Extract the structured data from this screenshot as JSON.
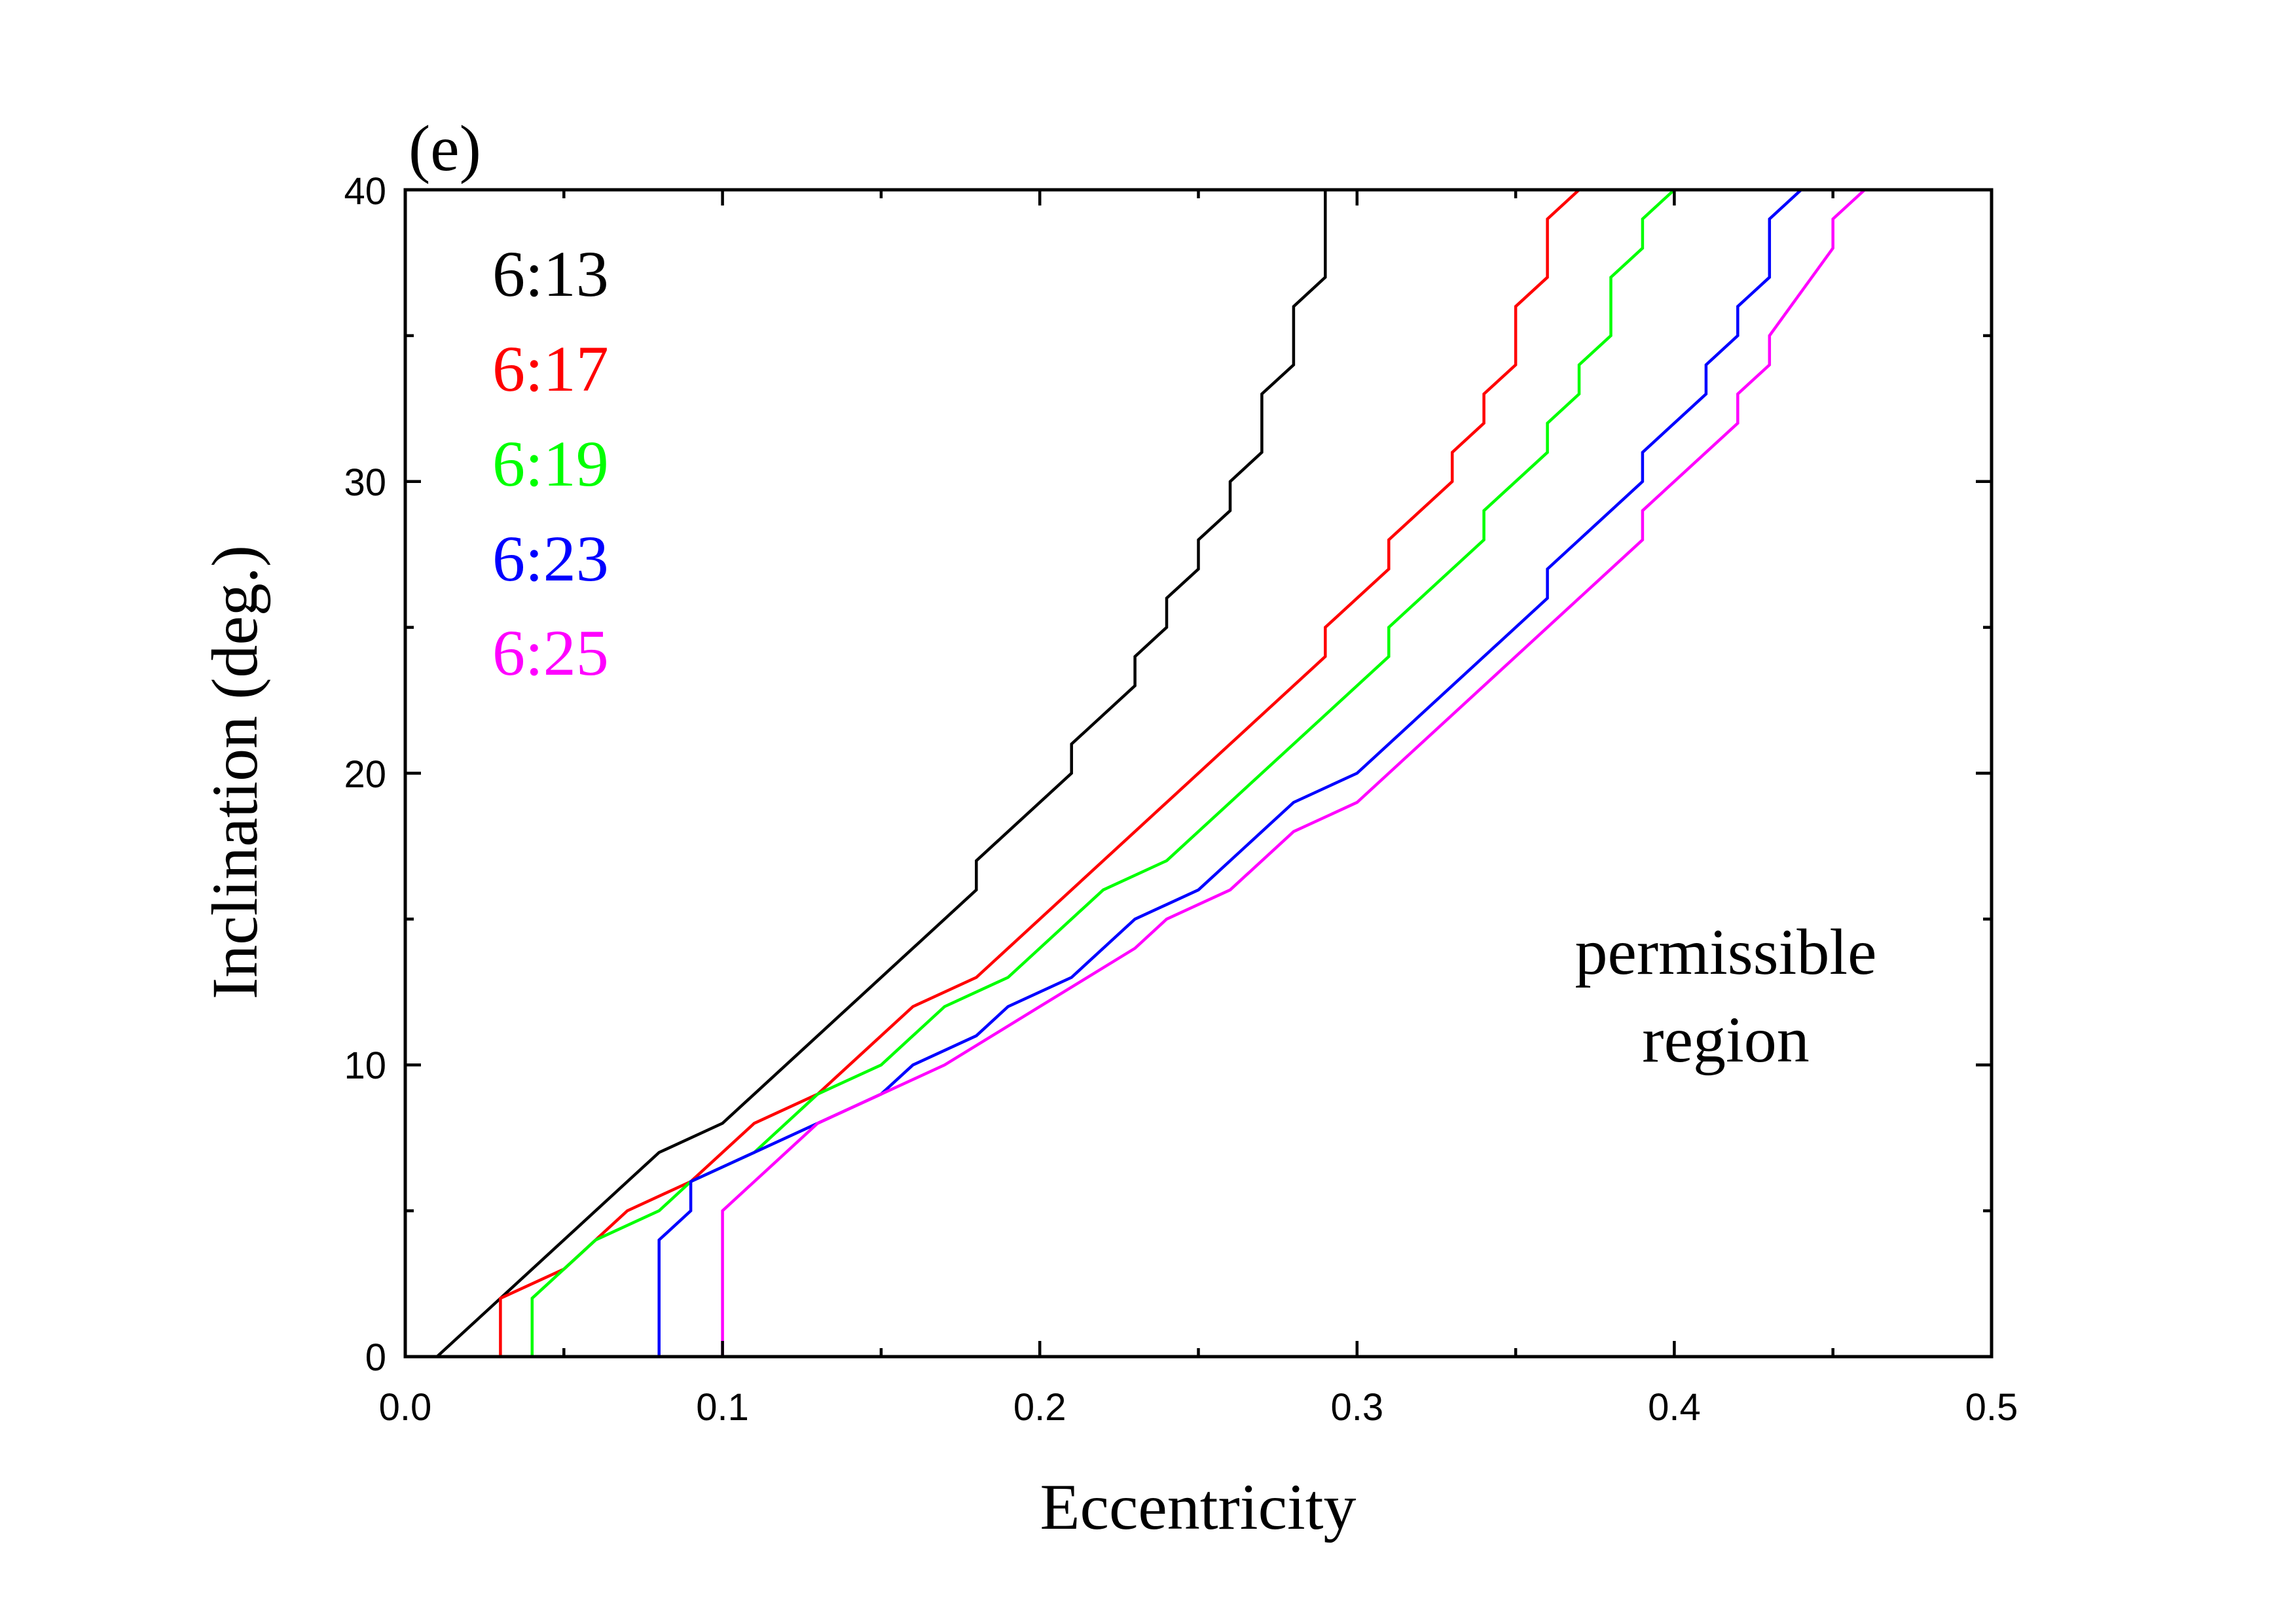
{
  "chart_data": {
    "type": "line",
    "panel_label": "(e)",
    "xlabel": "Eccentricity",
    "ylabel": "Inclination (deg.)",
    "xlim": [
      0.0,
      0.5
    ],
    "ylim": [
      0,
      40
    ],
    "x_ticks": [
      0.0,
      0.1,
      0.2,
      0.3,
      0.4,
      0.5
    ],
    "x_tick_labels": [
      "0.0",
      "0.1",
      "0.2",
      "0.3",
      "0.4",
      "0.5"
    ],
    "y_ticks": [
      0,
      10,
      20,
      30,
      40
    ],
    "y_tick_labels": [
      "0",
      "10",
      "20",
      "30",
      "40"
    ],
    "x_minor_step": 0.05,
    "y_minor_step": 5,
    "grid": false,
    "legend_position": "top-left",
    "annotation": {
      "line1": "permissible",
      "line2": "region"
    },
    "series": [
      {
        "name": "6:13",
        "color": "#000000",
        "x": [
          0.01,
          0.07,
          0.08,
          0.1,
          0.18,
          0.18,
          0.21,
          0.21,
          0.23,
          0.23,
          0.24,
          0.24,
          0.25,
          0.25,
          0.26,
          0.26,
          0.27,
          0.27,
          0.28,
          0.28,
          0.29,
          0.29
        ],
        "y": [
          0,
          6,
          7,
          8,
          16,
          17,
          20,
          21,
          23,
          24,
          25,
          26,
          27,
          28,
          29,
          30,
          31,
          33,
          34,
          36,
          37,
          40
        ]
      },
      {
        "name": "6:17",
        "color": "#ff0000",
        "x": [
          0.03,
          0.03,
          0.05,
          0.07,
          0.09,
          0.11,
          0.13,
          0.16,
          0.18,
          0.29,
          0.29,
          0.31,
          0.31,
          0.33,
          0.33,
          0.34,
          0.34,
          0.35,
          0.35,
          0.36,
          0.36,
          0.37
        ],
        "y": [
          0,
          2,
          3,
          5,
          6,
          8,
          9,
          12,
          13,
          24,
          25,
          27,
          28,
          30,
          31,
          32,
          33,
          34,
          36,
          37,
          39,
          40
        ]
      },
      {
        "name": "6:19",
        "color": "#00ff00",
        "x": [
          0.04,
          0.04,
          0.06,
          0.08,
          0.09,
          0.11,
          0.13,
          0.15,
          0.17,
          0.19,
          0.22,
          0.24,
          0.31,
          0.31,
          0.34,
          0.34,
          0.36,
          0.36,
          0.37,
          0.37,
          0.38,
          0.38,
          0.39,
          0.39,
          0.4
        ],
        "y": [
          0,
          2,
          4,
          5,
          6,
          7,
          9,
          10,
          12,
          13,
          16,
          17,
          24,
          25,
          28,
          29,
          31,
          32,
          33,
          34,
          35,
          37,
          38,
          39,
          40
        ]
      },
      {
        "name": "6:23",
        "color": "#0000ff",
        "x": [
          0.08,
          0.08,
          0.09,
          0.09,
          0.15,
          0.16,
          0.18,
          0.19,
          0.21,
          0.23,
          0.25,
          0.28,
          0.3,
          0.36,
          0.36,
          0.39,
          0.39,
          0.41,
          0.41,
          0.42,
          0.42,
          0.43,
          0.43,
          0.44
        ],
        "y": [
          0,
          4,
          5,
          6,
          9,
          10,
          11,
          12,
          13,
          15,
          16,
          19,
          20,
          26,
          27,
          30,
          31,
          33,
          34,
          35,
          36,
          37,
          39,
          40
        ]
      },
      {
        "name": "6:25",
        "color": "#ff00ff",
        "x": [
          0.1,
          0.1,
          0.13,
          0.17,
          0.2,
          0.23,
          0.24,
          0.26,
          0.28,
          0.3,
          0.39,
          0.39,
          0.42,
          0.42,
          0.43,
          0.43,
          0.45,
          0.45,
          0.46
        ],
        "y": [
          0,
          5,
          8,
          10,
          12,
          14,
          15,
          16,
          18,
          19,
          28,
          29,
          32,
          33,
          34,
          35,
          38,
          39,
          40
        ]
      }
    ]
  }
}
